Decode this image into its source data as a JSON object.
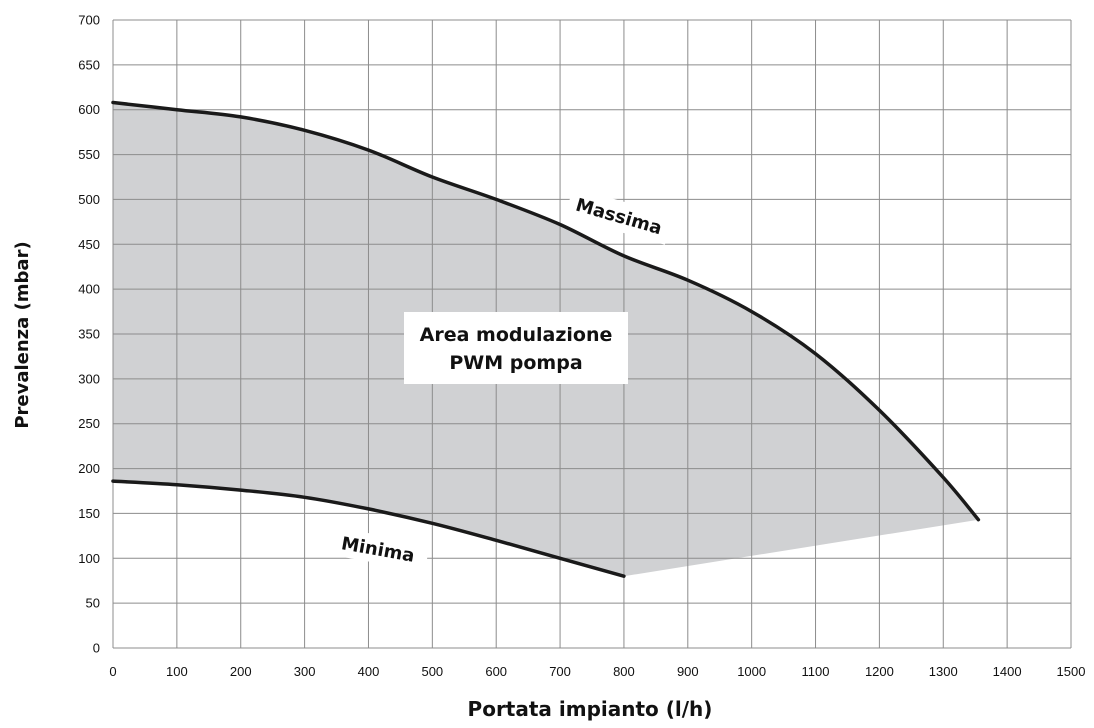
{
  "chart_data": {
    "type": "area",
    "title": "",
    "xlabel": "Portata impianto (l/h)",
    "ylabel": "Prevalenza (mbar)",
    "xlim": [
      0,
      1500
    ],
    "ylim": [
      0,
      700
    ],
    "x_ticks": [
      0,
      100,
      200,
      300,
      400,
      500,
      600,
      700,
      800,
      900,
      1000,
      1100,
      1200,
      1300,
      1400,
      1500
    ],
    "y_ticks": [
      0,
      50,
      100,
      150,
      200,
      250,
      300,
      350,
      400,
      450,
      500,
      550,
      600,
      650,
      700
    ],
    "grid": true,
    "series": [
      {
        "name": "Massima",
        "x": [
          0,
          100,
          200,
          300,
          400,
          500,
          600,
          700,
          800,
          900,
          1000,
          1100,
          1200,
          1300,
          1355
        ],
        "y": [
          608,
          600,
          592,
          577,
          555,
          525,
          500,
          472,
          437,
          410,
          375,
          328,
          265,
          190,
          143
        ]
      },
      {
        "name": "Minima",
        "x": [
          0,
          100,
          200,
          300,
          400,
          500,
          600,
          700,
          800
        ],
        "y": [
          186,
          182,
          176,
          168,
          155,
          139,
          120,
          100,
          80
        ]
      }
    ],
    "area_label": {
      "line1": "Area modulazione",
      "line2": "PWM pompa"
    },
    "colors": {
      "area_fill": "#d0d1d3",
      "curve": "#1a1a1a",
      "grid": "#8c8c8c"
    }
  }
}
